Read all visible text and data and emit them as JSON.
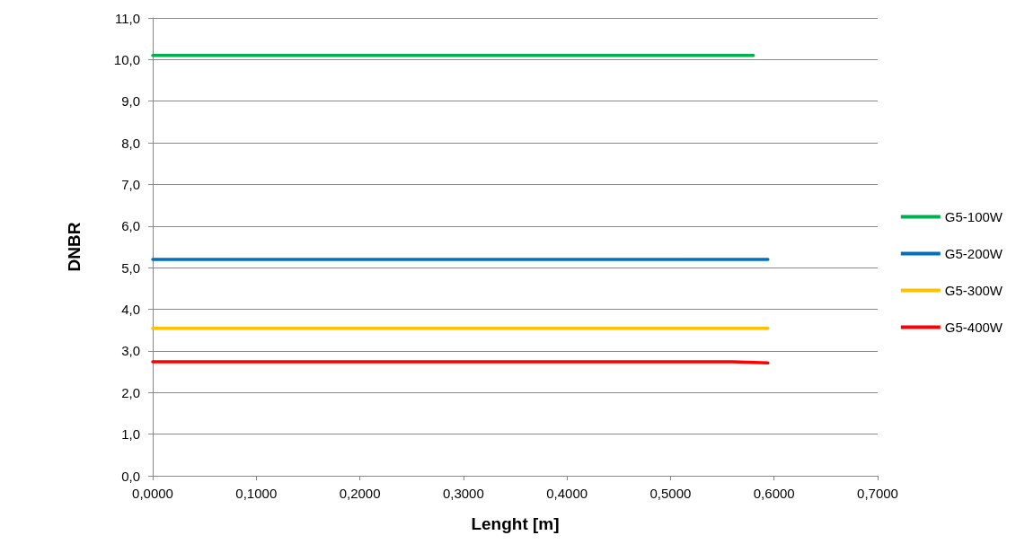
{
  "chart_data": {
    "type": "line",
    "xlabel": "Lenght [m]",
    "ylabel": "DNBR",
    "xlim": [
      0,
      0.7
    ],
    "ylim": [
      0,
      11
    ],
    "xticks": [
      {
        "value": 0,
        "label": "0,0000"
      },
      {
        "value": 0.1,
        "label": "0,1000"
      },
      {
        "value": 0.2,
        "label": "0,2000"
      },
      {
        "value": 0.3,
        "label": "0,3000"
      },
      {
        "value": 0.4,
        "label": "0,4000"
      },
      {
        "value": 0.5,
        "label": "0,5000"
      },
      {
        "value": 0.6,
        "label": "0,6000"
      },
      {
        "value": 0.7,
        "label": "0,7000"
      }
    ],
    "yticks": [
      {
        "value": 0,
        "label": "0,0"
      },
      {
        "value": 1,
        "label": "1,0"
      },
      {
        "value": 2,
        "label": "2,0"
      },
      {
        "value": 3,
        "label": "3,0"
      },
      {
        "value": 4,
        "label": "4,0"
      },
      {
        "value": 5,
        "label": "5,0"
      },
      {
        "value": 6,
        "label": "6,0"
      },
      {
        "value": 7,
        "label": "7,0"
      },
      {
        "value": 8,
        "label": "8,0"
      },
      {
        "value": 9,
        "label": "9,0"
      },
      {
        "value": 10,
        "label": "10,0"
      },
      {
        "value": 11,
        "label": "11,0"
      }
    ],
    "grid": "y",
    "legend": "right",
    "marker": "none",
    "line_style": "solid",
    "series": [
      {
        "name": "G5-100W",
        "color": "#00b050",
        "x": [
          0,
          0.58
        ],
        "values": [
          10.1,
          10.1
        ]
      },
      {
        "name": "G5-200W",
        "color": "#0070c0",
        "x": [
          0,
          0.594
        ],
        "values": [
          5.2,
          5.2
        ]
      },
      {
        "name": "G5-300W",
        "color": "#ffc000",
        "x": [
          0,
          0.594
        ],
        "values": [
          3.54,
          3.54
        ]
      },
      {
        "name": "G5-400W",
        "color": "#ff0000",
        "x": [
          0,
          0.56,
          0.594
        ],
        "values": [
          2.74,
          2.74,
          2.71
        ]
      }
    ]
  }
}
